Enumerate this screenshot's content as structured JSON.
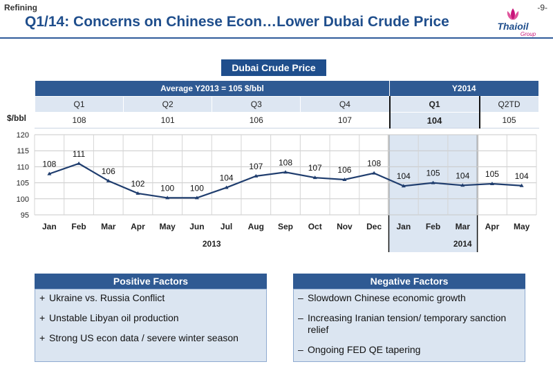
{
  "header": {
    "section": "Refining",
    "page": "-9-",
    "title": "Q1/14: Concerns on Chinese Econ…Lower Dubai Crude Price",
    "logo_text": "Thaioil",
    "logo_sub": "Group"
  },
  "chart_title": "Dubai Crude Price",
  "table": {
    "group_2013": "Average Y2013 = 105 $/bbl",
    "group_2014": "Y2014",
    "unit": "$/bbl",
    "quarters": [
      "Q1",
      "Q2",
      "Q3",
      "Q4",
      "Q1",
      "Q2TD"
    ],
    "values": [
      "108",
      "101",
      "106",
      "107",
      "104",
      "105"
    ]
  },
  "chart_data": {
    "type": "line",
    "title": "Dubai Crude Price",
    "categories": [
      "Jan",
      "Feb",
      "Mar",
      "Apr",
      "May",
      "Jun",
      "Jul",
      "Aug",
      "Sep",
      "Oct",
      "Nov",
      "Dec",
      "Jan",
      "Feb",
      "Mar",
      "Apr",
      "May"
    ],
    "values": [
      108,
      111,
      106,
      102,
      100,
      100,
      104,
      107,
      108,
      107,
      106,
      108,
      104,
      105,
      104,
      105,
      104
    ],
    "plotted_values": [
      107.8,
      111.0,
      105.6,
      101.7,
      100.3,
      100.3,
      103.5,
      107.1,
      108.3,
      106.6,
      106.0,
      108.0,
      104.0,
      105.0,
      104.2,
      104.7,
      104.1
    ],
    "year_labels": [
      "2013",
      "2014"
    ],
    "ylim": [
      95,
      120
    ],
    "yticks": [
      95,
      100,
      105,
      110,
      115,
      120
    ],
    "grid": true,
    "highlight": "Jan–Mar 2014",
    "line_color": "#1f3d6e",
    "highlight_color": "#dce6f2"
  },
  "positive": {
    "title": "Positive Factors",
    "items": [
      "Ukraine vs. Russia Conflict",
      "Unstable Libyan oil production",
      "Strong US econ data / severe winter season"
    ]
  },
  "negative": {
    "title": "Negative Factors",
    "items": [
      "Slowdown Chinese economic growth",
      "Increasing Iranian tension/ temporary sanction relief",
      "Ongoing FED QE tapering"
    ]
  }
}
